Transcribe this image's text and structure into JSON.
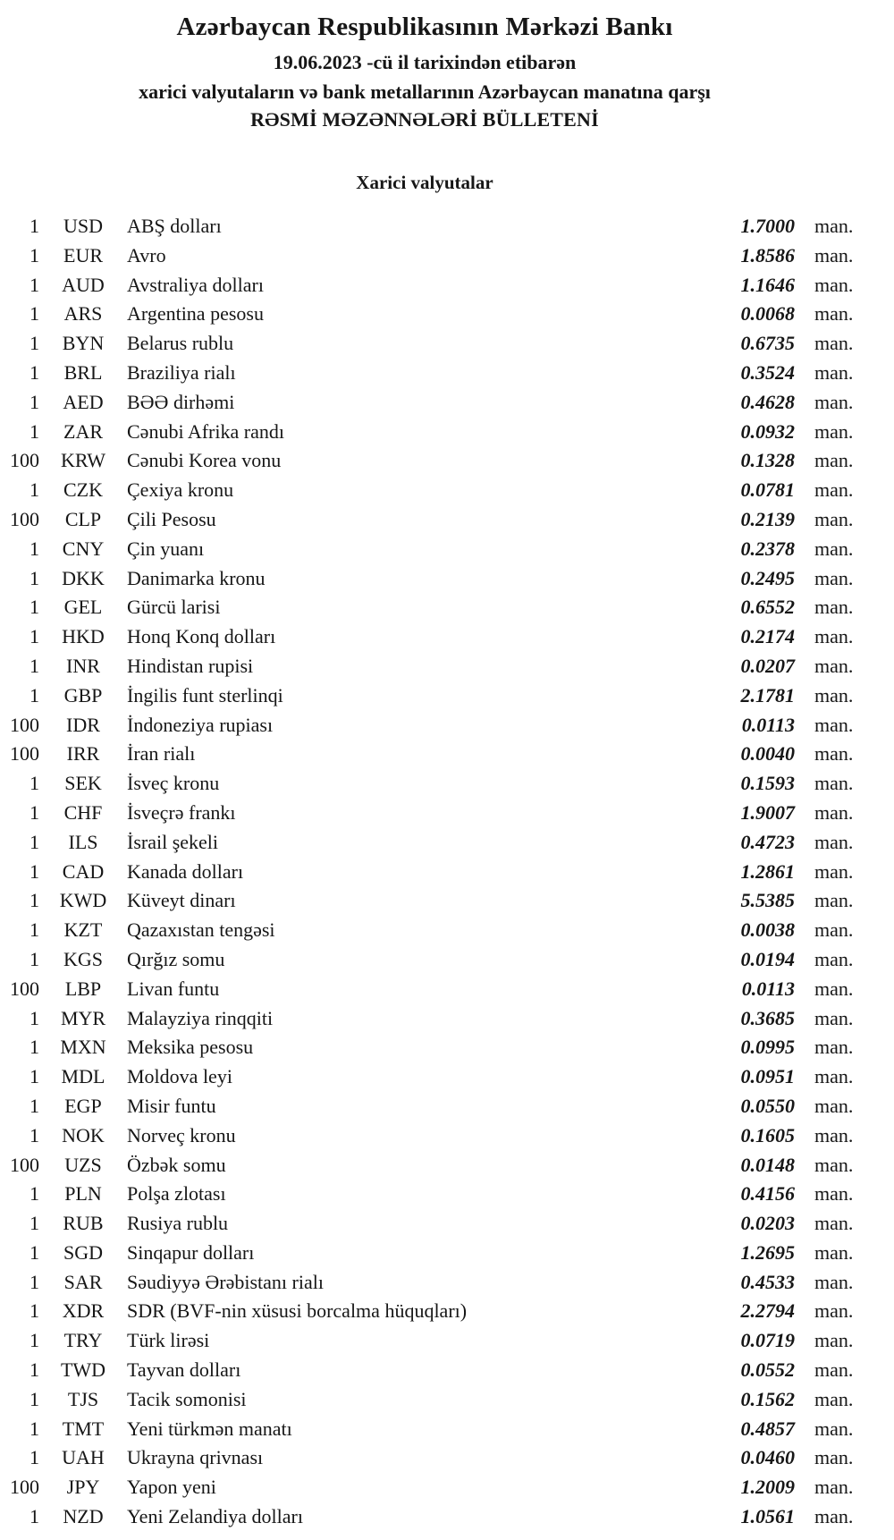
{
  "document": {
    "bank_name": "Azərbaycan Respublikasının Mərkəzi Bankı",
    "date_line": "19.06.2023 -cü il tarixindən etibarən",
    "subject_line": "xarici valyutaların və bank metallarının Azərbaycan manatına qarşı",
    "bulletin_title": "RƏSMİ MƏZƏNNƏLƏRİ BÜLLETENİ",
    "section_title": "Xarici valyutalar"
  },
  "colors": {
    "text": "#161616",
    "background": "#ffffff"
  },
  "rates": [
    {
      "qty": "1",
      "code": "USD",
      "name": "ABŞ dolları",
      "rate": "1.7000",
      "unit": "man."
    },
    {
      "qty": "1",
      "code": "EUR",
      "name": "Avro",
      "rate": "1.8586",
      "unit": "man."
    },
    {
      "qty": "1",
      "code": "AUD",
      "name": "Avstraliya dolları",
      "rate": "1.1646",
      "unit": "man."
    },
    {
      "qty": "1",
      "code": "ARS",
      "name": "Argentina pesosu",
      "rate": "0.0068",
      "unit": "man."
    },
    {
      "qty": "1",
      "code": "BYN",
      "name": "Belarus rublu",
      "rate": "0.6735",
      "unit": "man."
    },
    {
      "qty": "1",
      "code": "BRL",
      "name": "Braziliya rialı",
      "rate": "0.3524",
      "unit": "man."
    },
    {
      "qty": "1",
      "code": "AED",
      "name": "BƏƏ dirhəmi",
      "rate": "0.4628",
      "unit": "man."
    },
    {
      "qty": "1",
      "code": "ZAR",
      "name": "Cənubi Afrika randı",
      "rate": "0.0932",
      "unit": "man."
    },
    {
      "qty": "100",
      "code": "KRW",
      "name": "Cənubi Korea vonu",
      "rate": "0.1328",
      "unit": "man."
    },
    {
      "qty": "1",
      "code": "CZK",
      "name": "Çexiya kronu",
      "rate": "0.0781",
      "unit": "man."
    },
    {
      "qty": "100",
      "code": "CLP",
      "name": "Çili Pesosu",
      "rate": "0.2139",
      "unit": "man."
    },
    {
      "qty": "1",
      "code": "CNY",
      "name": "Çin yuanı",
      "rate": "0.2378",
      "unit": "man."
    },
    {
      "qty": "1",
      "code": "DKK",
      "name": "Danimarka kronu",
      "rate": "0.2495",
      "unit": "man."
    },
    {
      "qty": "1",
      "code": "GEL",
      "name": "Gürcü larisi",
      "rate": "0.6552",
      "unit": "man."
    },
    {
      "qty": "1",
      "code": "HKD",
      "name": "Honq Konq dolları",
      "rate": "0.2174",
      "unit": "man."
    },
    {
      "qty": "1",
      "code": "INR",
      "name": "Hindistan rupisi",
      "rate": "0.0207",
      "unit": "man."
    },
    {
      "qty": "1",
      "code": "GBP",
      "name": "İngilis funt sterlinqi",
      "rate": "2.1781",
      "unit": "man."
    },
    {
      "qty": "100",
      "code": "IDR",
      "name": "İndoneziya rupiası",
      "rate": "0.0113",
      "unit": "man."
    },
    {
      "qty": "100",
      "code": "IRR",
      "name": "İran rialı",
      "rate": "0.0040",
      "unit": "man."
    },
    {
      "qty": "1",
      "code": "SEK",
      "name": "İsveç kronu",
      "rate": "0.1593",
      "unit": "man."
    },
    {
      "qty": "1",
      "code": "CHF",
      "name": "İsveçrə frankı",
      "rate": "1.9007",
      "unit": "man."
    },
    {
      "qty": "1",
      "code": "ILS",
      "name": "İsrail şekeli",
      "rate": "0.4723",
      "unit": "man."
    },
    {
      "qty": "1",
      "code": "CAD",
      "name": "Kanada dolları",
      "rate": "1.2861",
      "unit": "man."
    },
    {
      "qty": "1",
      "code": "KWD",
      "name": "Küveyt dinarı",
      "rate": "5.5385",
      "unit": "man."
    },
    {
      "qty": "1",
      "code": "KZT",
      "name": "Qazaxıstan tengəsi",
      "rate": "0.0038",
      "unit": "man."
    },
    {
      "qty": "1",
      "code": "KGS",
      "name": "Qırğız somu",
      "rate": "0.0194",
      "unit": "man."
    },
    {
      "qty": "100",
      "code": "LBP",
      "name": "Livan funtu",
      "rate": "0.0113",
      "unit": "man."
    },
    {
      "qty": "1",
      "code": "MYR",
      "name": "Malayziya rinqqiti",
      "rate": "0.3685",
      "unit": "man."
    },
    {
      "qty": "1",
      "code": "MXN",
      "name": "Meksika pesosu",
      "rate": "0.0995",
      "unit": "man."
    },
    {
      "qty": "1",
      "code": "MDL",
      "name": "Moldova leyi",
      "rate": "0.0951",
      "unit": "man."
    },
    {
      "qty": "1",
      "code": "EGP",
      "name": "Misir funtu",
      "rate": "0.0550",
      "unit": "man."
    },
    {
      "qty": "1",
      "code": "NOK",
      "name": "Norveç kronu",
      "rate": "0.1605",
      "unit": "man."
    },
    {
      "qty": "100",
      "code": "UZS",
      "name": "Özbək somu",
      "rate": "0.0148",
      "unit": "man."
    },
    {
      "qty": "1",
      "code": "PLN",
      "name": "Polşa zlotası",
      "rate": "0.4156",
      "unit": "man."
    },
    {
      "qty": "1",
      "code": "RUB",
      "name": "Rusiya rublu",
      "rate": "0.0203",
      "unit": "man."
    },
    {
      "qty": "1",
      "code": "SGD",
      "name": "Sinqapur dolları",
      "rate": "1.2695",
      "unit": "man."
    },
    {
      "qty": "1",
      "code": "SAR",
      "name": "Səudiyyə Ərəbistanı rialı",
      "rate": "0.4533",
      "unit": "man."
    },
    {
      "qty": "1",
      "code": "XDR",
      "name": "SDR (BVF-nin xüsusi borcalma hüquqları)",
      "rate": "2.2794",
      "unit": "man."
    },
    {
      "qty": "1",
      "code": "TRY",
      "name": "Türk lirəsi",
      "rate": "0.0719",
      "unit": "man."
    },
    {
      "qty": "1",
      "code": "TWD",
      "name": "Tayvan dolları",
      "rate": "0.0552",
      "unit": "man."
    },
    {
      "qty": "1",
      "code": "TJS",
      "name": "Tacik somonisi",
      "rate": "0.1562",
      "unit": "man."
    },
    {
      "qty": "1",
      "code": "TMT",
      "name": "Yeni türkmən manatı",
      "rate": "0.4857",
      "unit": "man."
    },
    {
      "qty": "1",
      "code": "UAH",
      "name": "Ukrayna qrivnası",
      "rate": "0.0460",
      "unit": "man."
    },
    {
      "qty": "100",
      "code": "JPY",
      "name": "Yapon yeni",
      "rate": "1.2009",
      "unit": "man."
    },
    {
      "qty": "1",
      "code": "NZD",
      "name": "Yeni Zelandiya dolları",
      "rate": "1.0561",
      "unit": "man."
    }
  ]
}
